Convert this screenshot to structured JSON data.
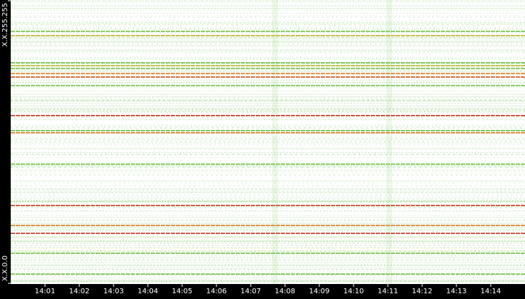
{
  "chart_data": {
    "type": "ip-time-lines",
    "xlim": [
      0,
      15
    ],
    "xticks": [
      {
        "value": 1,
        "label": "14:01"
      },
      {
        "value": 2,
        "label": "14:02"
      },
      {
        "value": 3,
        "label": "14:03"
      },
      {
        "value": 4,
        "label": "14:04"
      },
      {
        "value": 5,
        "label": "14:05"
      },
      {
        "value": 6,
        "label": "14:06"
      },
      {
        "value": 7,
        "label": "14:07"
      },
      {
        "value": 8,
        "label": "14:08"
      },
      {
        "value": 9,
        "label": "14:09"
      },
      {
        "value": 10,
        "label": "14:10"
      },
      {
        "value": 11,
        "label": "14:11"
      },
      {
        "value": 12,
        "label": "14:12"
      },
      {
        "value": 13,
        "label": "14:13"
      },
      {
        "value": 14,
        "label": "14:14"
      }
    ],
    "ylim": [
      0,
      65535
    ],
    "yticks": [
      {
        "value": 0,
        "label": "X.X.0.0"
      },
      {
        "value": 65535,
        "label": "X.X.255.255"
      }
    ],
    "lines": [
      {
        "y": 58289,
        "color": "#7cc254"
      },
      {
        "y": 57301,
        "color": "#c9b535"
      },
      {
        "y": 51044,
        "color": "#6cbf4a"
      },
      {
        "y": 50385,
        "color": "#b9c23a"
      },
      {
        "y": 49727,
        "color": "#7cc254"
      },
      {
        "y": 48575,
        "color": "#d9822b"
      },
      {
        "y": 47751,
        "color": "#cc5a2a"
      },
      {
        "y": 45775,
        "color": "#7cc254"
      },
      {
        "y": 38860,
        "color": "#c0392b"
      },
      {
        "y": 35402,
        "color": "#6cbf4a"
      },
      {
        "y": 34908,
        "color": "#d9822b"
      },
      {
        "y": 27663,
        "color": "#7cc254"
      },
      {
        "y": 18113,
        "color": "#c8442b"
      },
      {
        "y": 13503,
        "color": "#d9822b"
      },
      {
        "y": 11691,
        "color": "#c0392b"
      },
      {
        "y": 7080,
        "color": "#7cc254"
      },
      {
        "y": 2305,
        "color": "#7cc254"
      }
    ]
  }
}
